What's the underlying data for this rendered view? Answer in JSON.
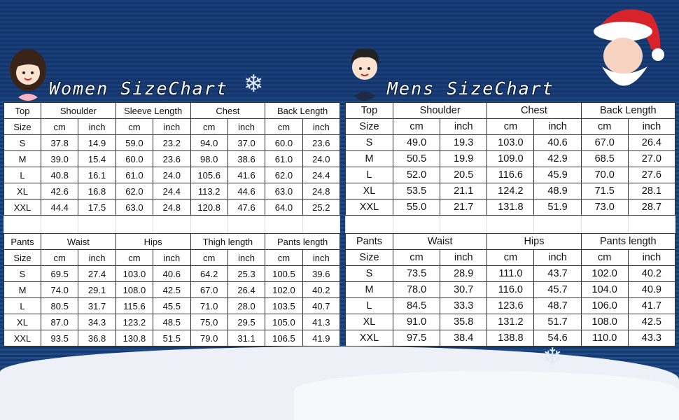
{
  "women": {
    "title": "Women SizeChart",
    "top": {
      "size_label": [
        "Top",
        "Size"
      ],
      "groups": [
        "Shoulder",
        "Sleeve Length",
        "Chest",
        "Back Length"
      ],
      "units": [
        "cm",
        "inch"
      ],
      "rows": [
        [
          "S",
          "37.8",
          "14.9",
          "59.0",
          "23.2",
          "94.0",
          "37.0",
          "60.0",
          "23.6"
        ],
        [
          "M",
          "39.0",
          "15.4",
          "60.0",
          "23.6",
          "98.0",
          "38.6",
          "61.0",
          "24.0"
        ],
        [
          "L",
          "40.8",
          "16.1",
          "61.0",
          "24.0",
          "105.6",
          "41.6",
          "62.0",
          "24.4"
        ],
        [
          "XL",
          "42.6",
          "16.8",
          "62.0",
          "24.4",
          "113.2",
          "44.6",
          "63.0",
          "24.8"
        ],
        [
          "XXL",
          "44.4",
          "17.5",
          "63.0",
          "24.8",
          "120.8",
          "47.6",
          "64.0",
          "25.2"
        ]
      ]
    },
    "pants": {
      "size_label": [
        "Pants",
        "Size"
      ],
      "groups": [
        "Waist",
        "Hips",
        "Thigh length",
        "Pants length"
      ],
      "units": [
        "cm",
        "inch"
      ],
      "rows": [
        [
          "S",
          "69.5",
          "27.4",
          "103.0",
          "40.6",
          "64.2",
          "25.3",
          "100.5",
          "39.6"
        ],
        [
          "M",
          "74.0",
          "29.1",
          "108.0",
          "42.5",
          "67.0",
          "26.4",
          "102.0",
          "40.2"
        ],
        [
          "L",
          "80.5",
          "31.7",
          "115.6",
          "45.5",
          "71.0",
          "28.0",
          "103.5",
          "40.7"
        ],
        [
          "XL",
          "87.0",
          "34.3",
          "123.2",
          "48.5",
          "75.0",
          "29.5",
          "105.0",
          "41.3"
        ],
        [
          "XXL",
          "93.5",
          "36.8",
          "130.8",
          "51.5",
          "79.0",
          "31.1",
          "106.5",
          "41.9"
        ]
      ]
    }
  },
  "men": {
    "title": "Mens SizeChart",
    "top": {
      "size_label": [
        "Top",
        "Size"
      ],
      "groups": [
        "Shoulder",
        "Chest",
        "Back Length"
      ],
      "units": [
        "cm",
        "inch"
      ],
      "rows": [
        [
          "S",
          "49.0",
          "19.3",
          "103.0",
          "40.6",
          "67.0",
          "26.4"
        ],
        [
          "M",
          "50.5",
          "19.9",
          "109.0",
          "42.9",
          "68.5",
          "27.0"
        ],
        [
          "L",
          "52.0",
          "20.5",
          "116.6",
          "45.9",
          "70.0",
          "27.6"
        ],
        [
          "XL",
          "53.5",
          "21.1",
          "124.2",
          "48.9",
          "71.5",
          "28.1"
        ],
        [
          "XXL",
          "55.0",
          "21.7",
          "131.8",
          "51.9",
          "73.0",
          "28.7"
        ]
      ]
    },
    "pants": {
      "size_label": [
        "Pants",
        "Size"
      ],
      "groups": [
        "Waist",
        "Hips",
        "Pants length"
      ],
      "units": [
        "cm",
        "inch"
      ],
      "rows": [
        [
          "S",
          "73.5",
          "28.9",
          "111.0",
          "43.7",
          "102.0",
          "40.2"
        ],
        [
          "M",
          "78.0",
          "30.7",
          "116.0",
          "45.7",
          "104.0",
          "40.9"
        ],
        [
          "L",
          "84.5",
          "33.3",
          "123.6",
          "48.7",
          "106.0",
          "41.7"
        ],
        [
          "XL",
          "91.0",
          "35.8",
          "131.2",
          "51.7",
          "108.0",
          "42.5"
        ],
        [
          "XXL",
          "97.5",
          "38.4",
          "138.8",
          "54.6",
          "110.0",
          "43.3"
        ]
      ]
    }
  },
  "colors": {
    "background": "#1f4a86",
    "table": "#ffffff",
    "border": "#333333",
    "snow": "#eef0f7"
  }
}
